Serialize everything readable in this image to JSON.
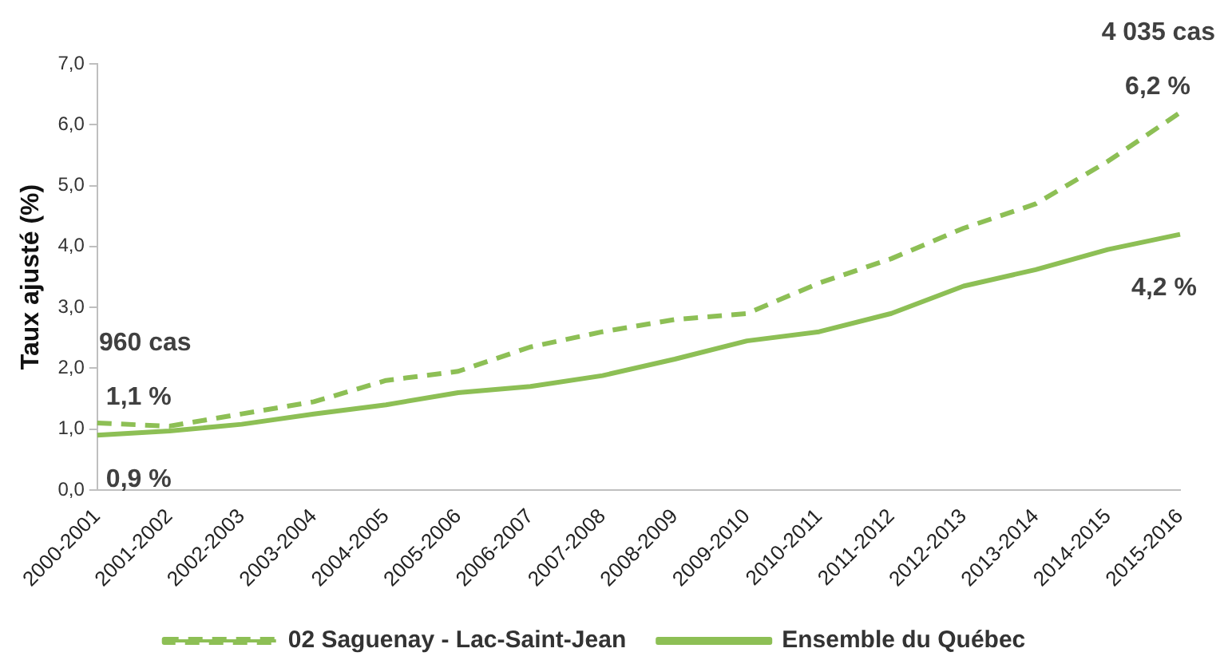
{
  "chart_data": {
    "type": "line",
    "ylabel": "Taux ajusté (%)",
    "categories": [
      "2000-2001",
      "2001-2002",
      "2002-2003",
      "2003-2004",
      "2004-2005",
      "2005-2006",
      "2006-2007",
      "2007-2008",
      "2008-2009",
      "2009-2010",
      "2010-2011",
      "2011-2012",
      "2012-2013",
      "2013-2014",
      "2014-2015",
      "2015-2016"
    ],
    "series": [
      {
        "name": "02 Saguenay - Lac-Saint-Jean",
        "color": "#8dbf55",
        "line_style": "dashed",
        "values": [
          1.1,
          1.05,
          1.25,
          1.45,
          1.8,
          1.95,
          2.35,
          2.6,
          2.8,
          2.9,
          3.4,
          3.8,
          4.3,
          4.7,
          5.4,
          6.2
        ],
        "value_labels": [
          "1,1 %",
          null,
          null,
          null,
          null,
          null,
          null,
          null,
          null,
          null,
          null,
          null,
          null,
          null,
          null,
          "6,2 %"
        ]
      },
      {
        "name": "Ensemble du Québec",
        "color": "#8dbf55",
        "line_style": "solid",
        "values": [
          0.9,
          0.97,
          1.08,
          1.25,
          1.4,
          1.6,
          1.7,
          1.88,
          2.15,
          2.45,
          2.6,
          2.9,
          3.35,
          3.62,
          3.95,
          4.2
        ],
        "value_labels": [
          "0,9 %",
          null,
          null,
          null,
          null,
          null,
          null,
          null,
          null,
          null,
          null,
          null,
          null,
          null,
          null,
          "4,2 %"
        ]
      }
    ],
    "annotations": [
      {
        "text": "960 cas",
        "x": "2000-2001",
        "y": 1.1
      },
      {
        "text": "4 035 cas",
        "x": "2015-2016",
        "y": 6.2
      }
    ],
    "ylim": [
      0,
      7
    ],
    "yticks": [
      {
        "value": 0,
        "label": "0,0"
      },
      {
        "value": 1,
        "label": "1,0"
      },
      {
        "value": 2,
        "label": "2,0"
      },
      {
        "value": 3,
        "label": "3,0"
      },
      {
        "value": 4,
        "label": "4,0"
      },
      {
        "value": 5,
        "label": "5,0"
      },
      {
        "value": 6,
        "label": "6,0"
      },
      {
        "value": 7,
        "label": "7,0"
      }
    ],
    "grid": false,
    "legend": "bottom",
    "marker": "none"
  }
}
